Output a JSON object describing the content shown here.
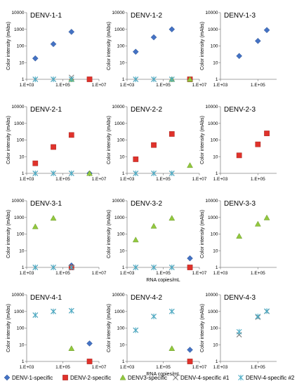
{
  "figure": {
    "x_axis_label": "RNA copies/mL",
    "colors": {
      "denv1": "#4472C4",
      "denv2": "#E0322B",
      "denv3": "#92C83E",
      "denv4_1": "#7F7F7F",
      "denv4_2": "#4BACC6"
    },
    "legend": [
      {
        "key": "denv1",
        "label": "DENV-1-specific",
        "marker": "diamond"
      },
      {
        "key": "denv2",
        "label": "DENV-2-specific",
        "marker": "square"
      },
      {
        "key": "denv3",
        "label": "DENV3-specific",
        "marker": "triangle"
      },
      {
        "key": "denv4_1",
        "label": "DENV-4-specific #1",
        "marker": "x"
      },
      {
        "key": "denv4_2",
        "label": "DENV-4-specific #2",
        "marker": "asterisk"
      }
    ]
  },
  "chart_data": [
    {
      "type": "scatter",
      "title": "DENV-1-1",
      "ylabel": "Color intensity (mAbs)",
      "xlabel": "",
      "xscale": "log",
      "yscale": "log",
      "xlim": [
        1000,
        10000000
      ],
      "ylim": [
        1,
        10000
      ],
      "xticks": [
        "1.E+03",
        "1.E+05",
        "1.E+07"
      ],
      "yticks": [
        "1",
        "10",
        "100",
        "1000",
        "10000"
      ],
      "series": [
        {
          "key": "denv1",
          "points": [
            [
              3000,
              18
            ],
            [
              30000,
              130
            ],
            [
              300000,
              700
            ]
          ]
        },
        {
          "key": "denv2",
          "points": [
            [
              3000000,
              1
            ]
          ]
        },
        {
          "key": "denv3",
          "points": [
            [
              300000,
              1
            ]
          ]
        },
        {
          "key": "denv4_1",
          "points": [
            [
              3000,
              1
            ],
            [
              30000,
              1
            ],
            [
              300000,
              1.3
            ]
          ]
        },
        {
          "key": "denv4_2",
          "points": [
            [
              3000,
              1
            ],
            [
              30000,
              1
            ],
            [
              300000,
              1
            ]
          ]
        }
      ]
    },
    {
      "type": "scatter",
      "title": "DENV-1-2",
      "ylabel": "Color intensity (mAbs)",
      "xlabel": "",
      "xscale": "log",
      "yscale": "log",
      "xlim": [
        1000,
        10000000
      ],
      "ylim": [
        1,
        10000
      ],
      "xticks": [
        "1.E+03",
        "1.E+05",
        "1.E+07"
      ],
      "yticks": [
        "1",
        "10",
        "100",
        "1000",
        "10000"
      ],
      "series": [
        {
          "key": "denv1",
          "points": [
            [
              3000,
              45
            ],
            [
              30000,
              330
            ],
            [
              300000,
              1000
            ]
          ]
        },
        {
          "key": "denv2",
          "points": [
            [
              3000000,
              1
            ]
          ]
        },
        {
          "key": "denv3",
          "points": [
            [
              300000,
              1
            ],
            [
              3000000,
              1
            ]
          ]
        },
        {
          "key": "denv4_1",
          "points": [
            [
              3000,
              1
            ],
            [
              30000,
              1
            ],
            [
              300000,
              1
            ]
          ]
        },
        {
          "key": "denv4_2",
          "points": [
            [
              3000,
              1
            ],
            [
              30000,
              1
            ],
            [
              300000,
              1
            ]
          ]
        }
      ]
    },
    {
      "type": "scatter",
      "title": "DENV-1-3",
      "ylabel": "Color intensity (mAbs)",
      "xlabel": "",
      "xscale": "log",
      "yscale": "log",
      "xlim": [
        1000,
        1000000
      ],
      "ylim": [
        1,
        10000
      ],
      "xticks": [
        "1.E+03",
        "1.E+05"
      ],
      "yticks": [
        "1",
        "10",
        "100",
        "1000",
        "10000"
      ],
      "series": [
        {
          "key": "denv1",
          "points": [
            [
              10000,
              25
            ],
            [
              100000,
              200
            ],
            [
              300000,
              900
            ]
          ]
        }
      ]
    },
    {
      "type": "scatter",
      "title": "DENV-2-1",
      "ylabel": "Color intensity (mAbs)",
      "xlabel": "",
      "xscale": "log",
      "yscale": "log",
      "xlim": [
        1000,
        10000000
      ],
      "ylim": [
        1,
        10000
      ],
      "xticks": [
        "1.E+03",
        "1.E+05",
        "1.E+07"
      ],
      "yticks": [
        "1",
        "10",
        "100",
        "1000",
        "10000"
      ],
      "series": [
        {
          "key": "denv1",
          "points": [
            [
              3000000,
              1
            ]
          ]
        },
        {
          "key": "denv2",
          "points": [
            [
              3000,
              4
            ],
            [
              30000,
              38
            ],
            [
              300000,
              200
            ]
          ]
        },
        {
          "key": "denv3",
          "points": [
            [
              3000000,
              1
            ]
          ]
        },
        {
          "key": "denv4_1",
          "points": [
            [
              3000,
              1
            ],
            [
              30000,
              1
            ],
            [
              300000,
              1
            ]
          ]
        },
        {
          "key": "denv4_2",
          "points": [
            [
              3000,
              1
            ],
            [
              30000,
              1
            ],
            [
              300000,
              1
            ]
          ]
        }
      ]
    },
    {
      "type": "scatter",
      "title": "DENV-2-2",
      "ylabel": "Color intensity (mAbs)",
      "xlabel": "",
      "xscale": "log",
      "yscale": "log",
      "xlim": [
        1000,
        10000000
      ],
      "ylim": [
        1,
        10000
      ],
      "xticks": [
        "1.E+03",
        "1.E+05",
        "1.E+07"
      ],
      "yticks": [
        "1",
        "10",
        "100",
        "1000",
        "10000"
      ],
      "series": [
        {
          "key": "denv2",
          "points": [
            [
              3000,
              7
            ],
            [
              30000,
              50
            ],
            [
              300000,
              230
            ]
          ]
        },
        {
          "key": "denv3",
          "points": [
            [
              3000000,
              3
            ]
          ]
        },
        {
          "key": "denv4_1",
          "points": [
            [
              3000,
              1
            ],
            [
              30000,
              1
            ],
            [
              300000,
              1
            ]
          ]
        },
        {
          "key": "denv4_2",
          "points": [
            [
              3000,
              1
            ],
            [
              30000,
              1
            ],
            [
              300000,
              1
            ]
          ]
        }
      ]
    },
    {
      "type": "scatter",
      "title": "DENV-2-3",
      "ylabel": "Color intensity (mAbs)",
      "xlabel": "",
      "xscale": "log",
      "yscale": "log",
      "xlim": [
        1000,
        1000000
      ],
      "ylim": [
        1,
        10000
      ],
      "xticks": [
        "1.E+03",
        "1.E+05"
      ],
      "yticks": [
        "1",
        "10",
        "100",
        "1000",
        "10000"
      ],
      "series": [
        {
          "key": "denv2",
          "points": [
            [
              10000,
              12
            ],
            [
              100000,
              55
            ],
            [
              300000,
              250
            ]
          ]
        }
      ]
    },
    {
      "type": "scatter",
      "title": "DENV-3-1",
      "ylabel": "Color intensity (mAbs)",
      "xlabel": "",
      "xscale": "log",
      "yscale": "log",
      "xlim": [
        1000,
        10000000
      ],
      "ylim": [
        1,
        10000
      ],
      "xticks": [
        "1.E+03",
        "1.E+05",
        "1.E+07"
      ],
      "yticks": [
        "1",
        "10",
        "100",
        "1000",
        "10000"
      ],
      "series": [
        {
          "key": "denv1",
          "points": [
            [
              300000,
              1.3
            ]
          ]
        },
        {
          "key": "denv2",
          "points": [
            [
              300000,
              1
            ]
          ]
        },
        {
          "key": "denv3",
          "points": [
            [
              3000,
              280
            ],
            [
              30000,
              900
            ]
          ]
        },
        {
          "key": "denv4_1",
          "points": [
            [
              3000,
              1
            ],
            [
              30000,
              1
            ],
            [
              300000,
              1
            ]
          ]
        },
        {
          "key": "denv4_2",
          "points": [
            [
              3000,
              1
            ],
            [
              30000,
              1
            ],
            [
              300000,
              1
            ]
          ]
        }
      ]
    },
    {
      "type": "scatter",
      "title": "DENV-3-2",
      "ylabel": "Color intensity (mAbs)",
      "xlabel": "RNA copies/mL",
      "xscale": "log",
      "yscale": "log",
      "xlim": [
        1000,
        10000000
      ],
      "ylim": [
        1,
        10000
      ],
      "xticks": [
        "1.E+03",
        "1.E+05",
        "1.E+07"
      ],
      "yticks": [
        "1",
        "10",
        "100",
        "1000",
        "10000"
      ],
      "series": [
        {
          "key": "denv1",
          "points": [
            [
              3000000,
              3.5
            ]
          ]
        },
        {
          "key": "denv2",
          "points": [
            [
              3000000,
              1
            ]
          ]
        },
        {
          "key": "denv3",
          "points": [
            [
              3000,
              45
            ],
            [
              30000,
              300
            ],
            [
              300000,
              900
            ]
          ]
        },
        {
          "key": "denv4_1",
          "points": [
            [
              3000,
              1
            ],
            [
              30000,
              1
            ],
            [
              300000,
              1
            ]
          ]
        },
        {
          "key": "denv4_2",
          "points": [
            [
              3000,
              1
            ],
            [
              30000,
              1
            ],
            [
              300000,
              1
            ]
          ]
        }
      ]
    },
    {
      "type": "scatter",
      "title": "DENV-3-3",
      "ylabel": "Color intensity (mAbs)",
      "xlabel": "",
      "xscale": "log",
      "yscale": "log",
      "xlim": [
        1000,
        1000000
      ],
      "ylim": [
        1,
        10000
      ],
      "xticks": [
        "1.E+03",
        "1.E+05"
      ],
      "yticks": [
        "1",
        "10",
        "100",
        "1000",
        "10000"
      ],
      "series": [
        {
          "key": "denv3",
          "points": [
            [
              10000,
              75
            ],
            [
              100000,
              400
            ],
            [
              300000,
              950
            ]
          ]
        }
      ]
    },
    {
      "type": "scatter",
      "title": "DENV-4-1",
      "ylabel": "Color intensity (mAbs)",
      "xlabel": "",
      "xscale": "log",
      "yscale": "log",
      "xlim": [
        1000,
        10000000
      ],
      "ylim": [
        1,
        10000
      ],
      "xticks": [
        "1.E+03",
        "1.E+05",
        "1.E+07"
      ],
      "yticks": [
        "1",
        "10",
        "100",
        "1000",
        "10000"
      ],
      "series": [
        {
          "key": "denv1",
          "points": [
            [
              3000000,
              12
            ]
          ]
        },
        {
          "key": "denv2",
          "points": [
            [
              3000000,
              1
            ]
          ]
        },
        {
          "key": "denv3",
          "points": [
            [
              300000,
              6
            ]
          ]
        },
        {
          "key": "denv4_1",
          "points": [
            [
              3000,
              600
            ],
            [
              30000,
              1000
            ],
            [
              300000,
              1100
            ]
          ]
        },
        {
          "key": "denv4_2",
          "points": [
            [
              3000,
              600
            ],
            [
              30000,
              1000
            ],
            [
              300000,
              1100
            ]
          ]
        }
      ]
    },
    {
      "type": "scatter",
      "title": "DENV-4-2",
      "ylabel": "Color intensity (mAbs)",
      "xlabel": "RNA copies/mL",
      "xscale": "log",
      "yscale": "log",
      "xlim": [
        1000,
        10000000
      ],
      "ylim": [
        1,
        10000
      ],
      "xticks": [
        "1.E+03",
        "1.E+05",
        "1.E+07"
      ],
      "yticks": [
        "1",
        "10",
        "100",
        "1000",
        "10000"
      ],
      "series": [
        {
          "key": "denv1",
          "points": [
            [
              3000000,
              5
            ]
          ]
        },
        {
          "key": "denv2",
          "points": [
            [
              3000000,
              1
            ]
          ]
        },
        {
          "key": "denv3",
          "points": [
            [
              300000,
              6
            ]
          ]
        },
        {
          "key": "denv4_1",
          "points": [
            [
              3000,
              75
            ],
            [
              30000,
              500
            ],
            [
              300000,
              1000
            ]
          ]
        },
        {
          "key": "denv4_2",
          "points": [
            [
              3000,
              75
            ],
            [
              30000,
              500
            ],
            [
              300000,
              1000
            ]
          ]
        }
      ]
    },
    {
      "type": "scatter",
      "title": "DENV-4-3",
      "ylabel": "Color intensity (mAbs)",
      "xlabel": "",
      "xscale": "log",
      "yscale": "log",
      "xlim": [
        1000,
        1000000
      ],
      "ylim": [
        1,
        10000
      ],
      "xticks": [
        "1.E+03",
        "1.E+05"
      ],
      "yticks": [
        "1",
        "10",
        "100",
        "1000",
        "10000"
      ],
      "series": [
        {
          "key": "denv4_1",
          "points": [
            [
              10000,
              40
            ],
            [
              100000,
              450
            ],
            [
              300000,
              1000
            ]
          ]
        },
        {
          "key": "denv4_2",
          "points": [
            [
              10000,
              60
            ],
            [
              100000,
              500
            ],
            [
              300000,
              1050
            ]
          ]
        }
      ]
    }
  ]
}
